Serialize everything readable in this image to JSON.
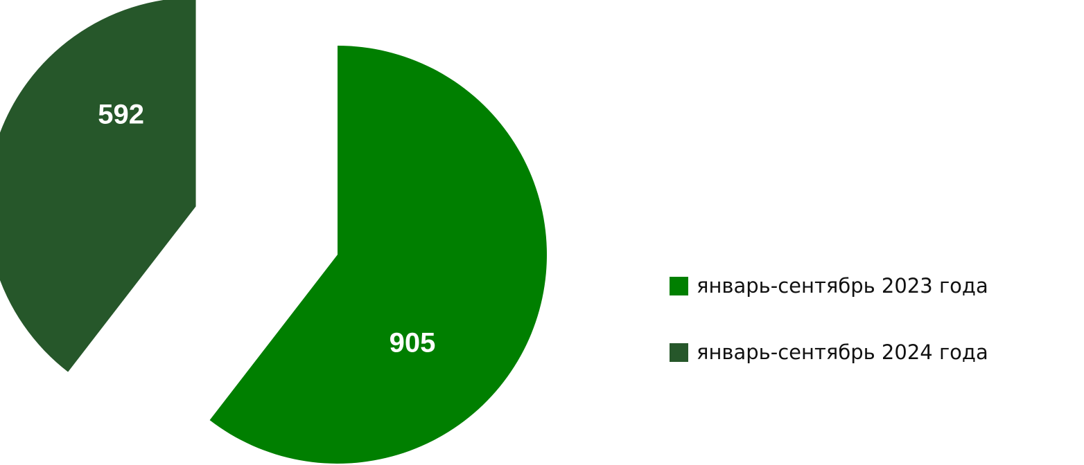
{
  "chart_data": {
    "type": "pie",
    "title": "",
    "categories": [
      "январь-сентябрь 2023 года",
      "январь-сентябрь 2024 года"
    ],
    "values": [
      905,
      592
    ],
    "data_labels": [
      "905",
      "592"
    ],
    "colors": [
      "#007f00",
      "#26572a"
    ],
    "exploded": true,
    "legend_position": "right"
  },
  "legend": {
    "items": [
      {
        "label": "январь-сентябрь 2023 года",
        "color": "#007f00"
      },
      {
        "label": "январь-сентябрь 2024 года",
        "color": "#26572a"
      }
    ]
  }
}
